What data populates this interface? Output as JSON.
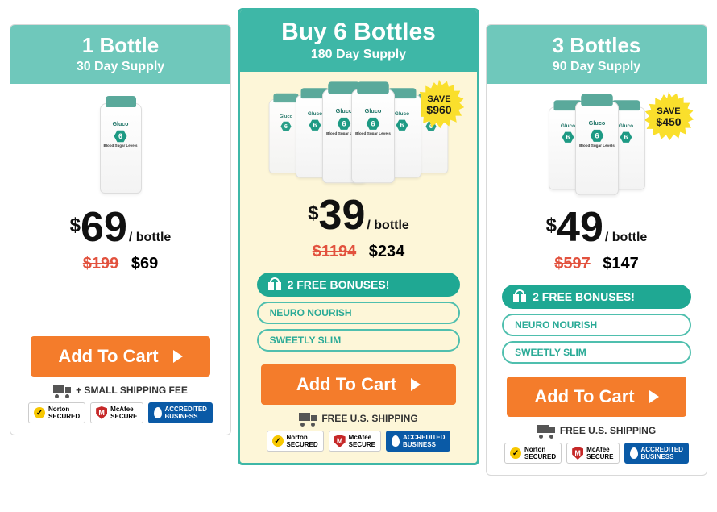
{
  "product_label": {
    "brand": "Gluco",
    "num": "6",
    "line": "Blood Sugar Levels"
  },
  "badges": {
    "norton": {
      "name": "Norton",
      "sub": "SECURED"
    },
    "mcafee": {
      "name": "McAfee",
      "sub": "SECURE"
    },
    "bbb": {
      "name": "ACCREDITED",
      "sub": "BUSINESS"
    }
  },
  "cta_label": "Add To Cart",
  "per_suffix": "/ bottle",
  "currency": "$",
  "bonuses": {
    "heading": "2 FREE BONUSES!",
    "items": [
      "NEURO NOURISH",
      "SWEETLY SLIM"
    ]
  },
  "plans": {
    "single": {
      "title": "1 Bottle",
      "subtitle": "30 Day Supply",
      "price": "69",
      "old_price": "$199",
      "new_total": "$69",
      "shipping": "+ SMALL SHIPPING FEE",
      "has_bonuses": false,
      "save_badge": null,
      "bottle_count": 1
    },
    "six": {
      "title": "Buy 6 Bottles",
      "subtitle": "180 Day Supply",
      "price": "39",
      "old_price": "$1194",
      "new_total": "$234",
      "shipping": "FREE U.S. SHIPPING",
      "has_bonuses": true,
      "save_badge": {
        "label": "SAVE",
        "amount": "$960"
      },
      "bottle_count": 6
    },
    "three": {
      "title": "3 Bottles",
      "subtitle": "90 Day Supply",
      "price": "49",
      "old_price": "$597",
      "new_total": "$147",
      "shipping": "FREE U.S. SHIPPING",
      "has_bonuses": true,
      "save_badge": {
        "label": "SAVE",
        "amount": "$450"
      },
      "bottle_count": 3
    }
  },
  "colors": {
    "teal_light": "#6fc8bb",
    "teal": "#3eb7a7",
    "teal_dark": "#1fa893",
    "cream": "#fdf6d8",
    "orange": "#f47c2b",
    "burst": "#fadf2c",
    "strike": "#e2523e"
  }
}
